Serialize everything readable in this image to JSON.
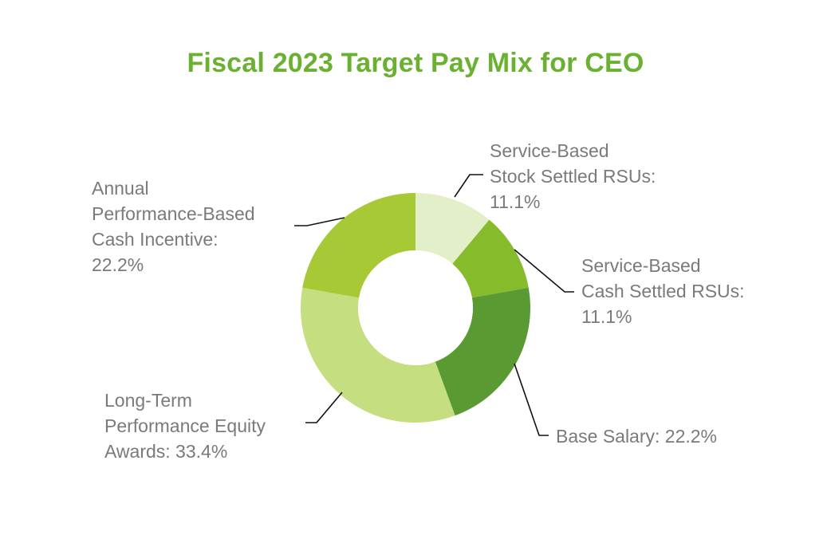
{
  "chart_data": {
    "type": "pie",
    "variant": "donut",
    "title": "Fiscal 2023 Target Pay Mix for CEO",
    "title_color": "#6bb131",
    "label_color": "#7a7a7a",
    "leader_color": "#111111",
    "slices": [
      {
        "name": "Service-Based Stock Settled RSUs",
        "value": 11.1,
        "color": "#e3efc8",
        "label_lines": [
          "Service-Based",
          "Stock Settled RSUs:",
          "11.1%"
        ]
      },
      {
        "name": "Service-Based Cash Settled RSUs",
        "value": 11.1,
        "color": "#86bc2b",
        "label_lines": [
          "Service-Based",
          "Cash Settled RSUs:",
          "11.1%"
        ]
      },
      {
        "name": "Base Salary",
        "value": 22.2,
        "color": "#5a9a33",
        "label_lines": [
          "Base Salary: 22.2%"
        ]
      },
      {
        "name": "Long-Term Performance Equity Awards",
        "value": 33.4,
        "color": "#c5de7f",
        "label_lines": [
          "Long-Term",
          "Performance Equity",
          "Awards: 33.4%"
        ]
      },
      {
        "name": "Annual Performance-Based Cash Incentive",
        "value": 22.2,
        "color": "#a6c935",
        "label_lines": [
          "Annual",
          "Performance-Based",
          "Cash Incentive:",
          "22.2%"
        ]
      }
    ]
  }
}
